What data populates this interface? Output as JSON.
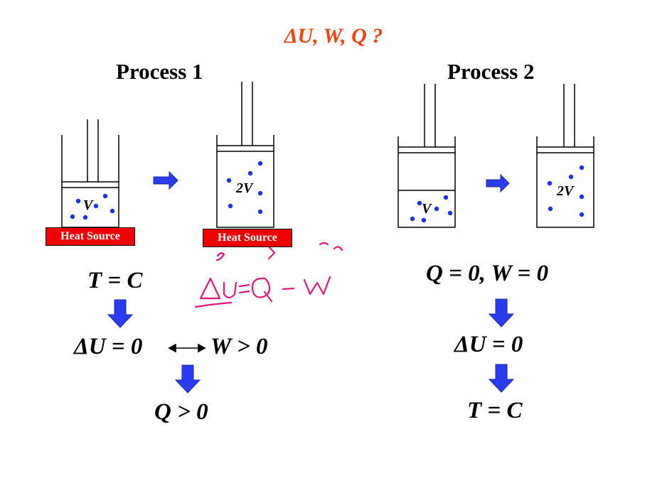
{
  "title": "ΔU, W, Q ?",
  "process1": {
    "heading": "Process 1",
    "heat_source_left": "Heat Source",
    "heat_source_right": "Heat Source",
    "volume_left": "V",
    "volume_right": "2V",
    "eq_line1": "T = C",
    "eq_line2_left": "ΔU = 0",
    "eq_line2_right": "W > 0",
    "eq_line3": "Q > 0"
  },
  "process2": {
    "heading": "Process 2",
    "volume_left": "V",
    "volume_right": "2V",
    "eq_line1": "Q = 0, W = 0",
    "eq_line2": "ΔU = 0",
    "eq_line3": "T = C"
  },
  "annotation": {
    "handwritten": "ΔU = Q − W",
    "color": "#e0187a"
  },
  "colors": {
    "title": "#ee4411",
    "arrow": "#2a3cf0",
    "molecule": "#1f33e6",
    "heat_source": "#ee0000"
  }
}
